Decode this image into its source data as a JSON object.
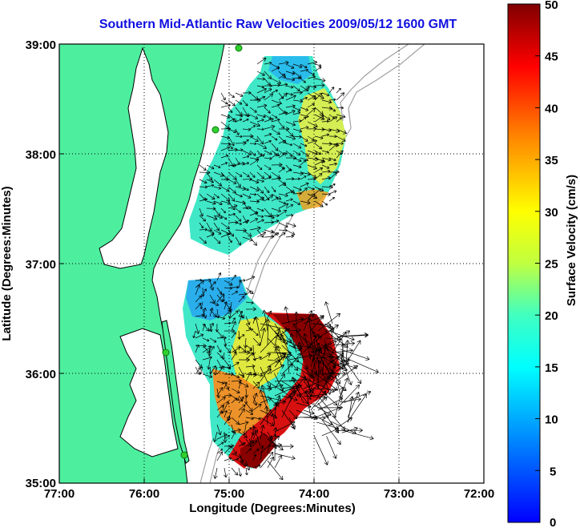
{
  "title": "Southern Mid-Atlantic Raw Velocities 2009/05/12 1600 GMT",
  "map": {
    "xlabel": "Longitude (Degrees:Minutes)",
    "ylabel": "Latitude (Degrees:Minutes)",
    "x_ticks": [
      "77:00",
      "76:00",
      "75:00",
      "74:00",
      "73:00",
      "72:00"
    ],
    "y_ticks": [
      "39:00",
      "38:00",
      "37:00",
      "36:00",
      "35:00"
    ],
    "lon_range": [
      -77,
      -72
    ],
    "lat_range": [
      35,
      39
    ],
    "grid": true,
    "land_color": "#4def9f",
    "coast_color": "#000000",
    "shelf_contour_color": "#a0a0a0",
    "station_color": "#30d030"
  },
  "colorbar": {
    "label": "Surface Velocity (cm/s)",
    "ticks": [
      "50",
      "45",
      "40",
      "35",
      "30",
      "25",
      "20",
      "15",
      "10",
      "5",
      "0"
    ],
    "range": [
      0,
      50
    ],
    "colormap": "jet"
  }
}
